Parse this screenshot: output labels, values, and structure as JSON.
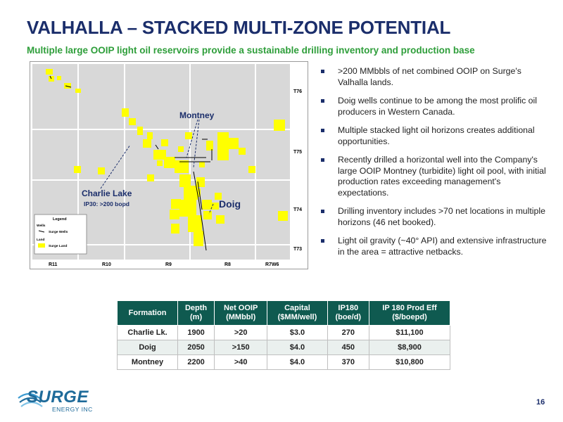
{
  "header": {
    "title": "VALHALLA – STACKED MULTI-ZONE POTENTIAL",
    "subtitle": "Multiple large OOIP light oil reservoirs provide a sustainable drilling inventory and production base"
  },
  "map": {
    "callouts": {
      "montney": "Montney",
      "charlie_lake": "Charlie Lake",
      "charlie_lake_ip": "IP30: >200 bopd",
      "doig": "Doig"
    },
    "townships": [
      "T76",
      "T75",
      "T74",
      "T73"
    ],
    "ranges": [
      "R11",
      "R10",
      "R9",
      "R8",
      "R7W6"
    ],
    "legend": {
      "title": "Legend",
      "wells_heading": "Wells",
      "wells_item": "Surge Wells",
      "land_heading": "Land",
      "land_item": "Surge Land"
    },
    "colors": {
      "land": "#ffff00",
      "township_bg": "#d8d8d8",
      "callout_text": "#1b2e6b"
    }
  },
  "bullets": [
    ">200 MMbbls of net combined OOIP on Surge's Valhalla lands.",
    "Doig wells continue to be among the most prolific oil producers in Western Canada.",
    "Multiple stacked light oil horizons creates additional opportunities.",
    "Recently drilled a horizontal well into the Company's large OOIP Montney (turbidite) light oil pool, with initial production rates exceeding management's expectations.",
    "Drilling inventory includes >70 net locations in multiple horizons (46 net booked).",
    "Light oil gravity (~40° API) and extensive infrastructure in the area = attractive netbacks."
  ],
  "table": {
    "headers": [
      [
        "Formation",
        ""
      ],
      [
        "Depth",
        "(m)"
      ],
      [
        "Net OOIP",
        "(MMbbl)"
      ],
      [
        "Capital",
        "($MM/well)"
      ],
      [
        "IP180",
        "(boe/d)"
      ],
      [
        "IP 180 Prod Eff",
        "($/boepd)"
      ]
    ],
    "rows": [
      [
        "Charlie Lk.",
        "1900",
        ">20",
        "$3.0",
        "270",
        "$11,100"
      ],
      [
        "Doig",
        "2050",
        ">150",
        "$4.0",
        "450",
        "$8,900"
      ],
      [
        "Montney",
        "2200",
        ">40",
        "$4.0",
        "370",
        "$10,800"
      ]
    ]
  },
  "footer": {
    "logo_text": "SURGE",
    "logo_sub": "ENERGY INC",
    "page_number": "16"
  }
}
